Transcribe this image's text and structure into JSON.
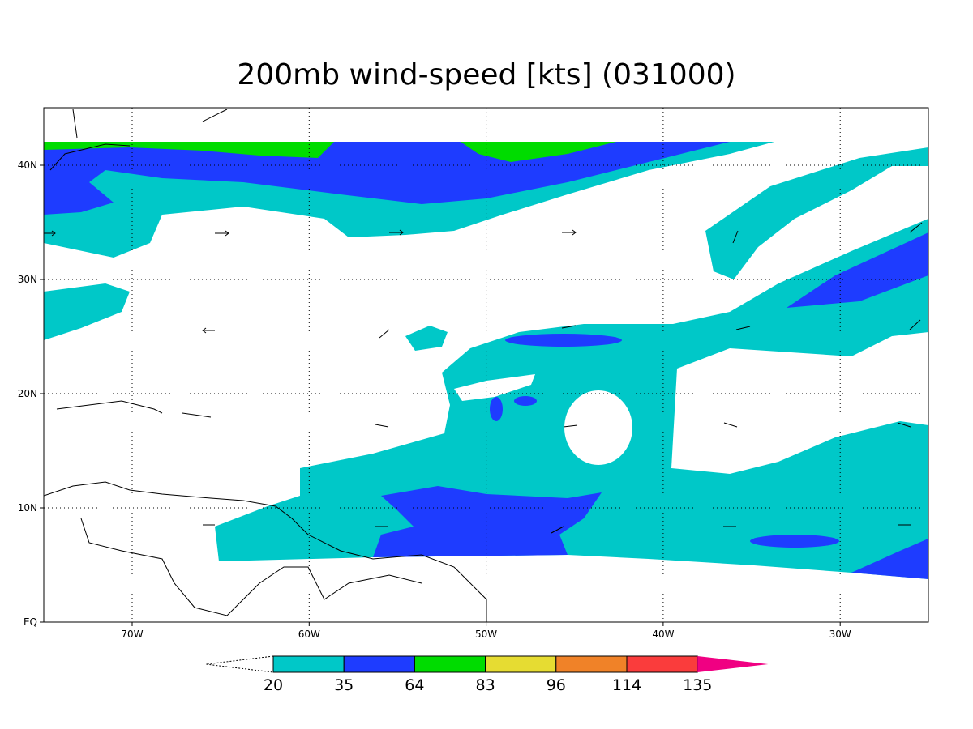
{
  "title": "200mb wind-speed [kts] (031000)",
  "map": {
    "x_tick_labels": [
      "70W",
      "60W",
      "50W",
      "40W",
      "30W"
    ],
    "y_tick_labels": [
      "EQ",
      "10N",
      "20N",
      "30N",
      "40N"
    ]
  },
  "colorbar": {
    "levels": [
      "20",
      "35",
      "64",
      "83",
      "96",
      "114",
      "135"
    ],
    "colors": [
      "#00c8c8",
      "#1e3cff",
      "#00dc00",
      "#e6dc32",
      "#f08228",
      "#fa3c3c",
      "#f00082"
    ]
  }
}
